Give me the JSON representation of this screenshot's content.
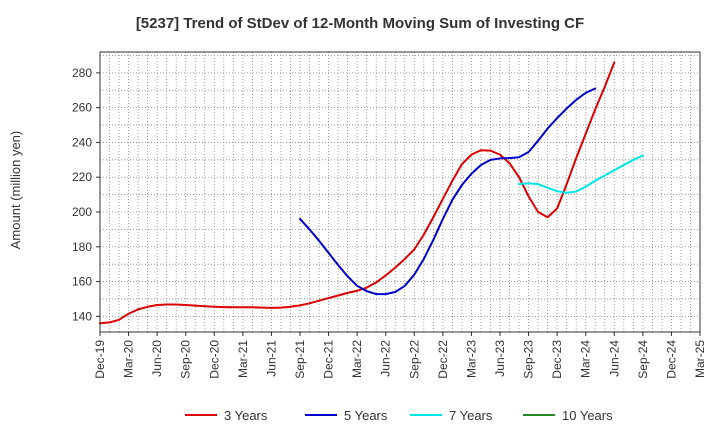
{
  "chart_data": {
    "type": "line",
    "title": "[5237]  Trend of StDev of 12-Month Moving Sum of Investing CF",
    "ylabel": "Amount (million yen)",
    "xlabel": "",
    "ylim": [
      131,
      292
    ],
    "yticks": [
      140,
      160,
      180,
      200,
      220,
      240,
      260,
      280
    ],
    "x_range": [
      "2019-12",
      "2025-03"
    ],
    "x_tick_labels": [
      "Dec-19",
      "Mar-20",
      "Jun-20",
      "Sep-20",
      "Dec-20",
      "Mar-21",
      "Jun-21",
      "Sep-21",
      "Dec-21",
      "Mar-22",
      "Jun-22",
      "Sep-22",
      "Dec-22",
      "Mar-23",
      "Jun-23",
      "Sep-23",
      "Dec-23",
      "Mar-24",
      "Jun-24",
      "Sep-24",
      "Dec-24",
      "Mar-25"
    ],
    "grid": true,
    "legend_position": "bottom",
    "series": [
      {
        "name": "3 Years",
        "color": "#dd0000",
        "points": [
          [
            "2019-12",
            136
          ],
          [
            "2020-01",
            136.5
          ],
          [
            "2020-02",
            138
          ],
          [
            "2020-03",
            141.5
          ],
          [
            "2020-04",
            144
          ],
          [
            "2020-05",
            145.5
          ],
          [
            "2020-06",
            146.5
          ],
          [
            "2020-07",
            146.8
          ],
          [
            "2020-08",
            146.8
          ],
          [
            "2020-09",
            146.5
          ],
          [
            "2020-10",
            146.2
          ],
          [
            "2020-11",
            145.8
          ],
          [
            "2020-12",
            145.5
          ],
          [
            "2021-01",
            145.3
          ],
          [
            "2021-02",
            145.2
          ],
          [
            "2021-03",
            145.2
          ],
          [
            "2021-04",
            145.2
          ],
          [
            "2021-05",
            145
          ],
          [
            "2021-06",
            144.9
          ],
          [
            "2021-07",
            145
          ],
          [
            "2021-08",
            145.5
          ],
          [
            "2021-09",
            146.3
          ],
          [
            "2021-10",
            147.5
          ],
          [
            "2021-11",
            149
          ],
          [
            "2021-12",
            150.5
          ],
          [
            "2022-01",
            152
          ],
          [
            "2022-02",
            153.5
          ],
          [
            "2022-03",
            154.7
          ],
          [
            "2022-04",
            156.5
          ],
          [
            "2022-05",
            159.5
          ],
          [
            "2022-06",
            163.5
          ],
          [
            "2022-07",
            168
          ],
          [
            "2022-08",
            173
          ],
          [
            "2022-09",
            178.5
          ],
          [
            "2022-10",
            187
          ],
          [
            "2022-11",
            197
          ],
          [
            "2022-12",
            207.5
          ],
          [
            "2023-01",
            218
          ],
          [
            "2023-02",
            227.5
          ],
          [
            "2023-03",
            233
          ],
          [
            "2023-04",
            235.5
          ],
          [
            "2023-05",
            235.3
          ],
          [
            "2023-06",
            233
          ],
          [
            "2023-07",
            228
          ],
          [
            "2023-08",
            220
          ],
          [
            "2023-09",
            209
          ],
          [
            "2023-10",
            200
          ],
          [
            "2023-11",
            197
          ],
          [
            "2023-12",
            202
          ],
          [
            "2024-01",
            216
          ],
          [
            "2024-02",
            231
          ],
          [
            "2024-03",
            245
          ],
          [
            "2024-04",
            259
          ],
          [
            "2024-05",
            272
          ],
          [
            "2024-06",
            286
          ]
        ]
      },
      {
        "name": "5 Years",
        "color": "#0000cc",
        "points": [
          [
            "2021-09",
            196
          ],
          [
            "2021-10",
            190
          ],
          [
            "2021-11",
            183.5
          ],
          [
            "2021-12",
            176.5
          ],
          [
            "2022-01",
            169.5
          ],
          [
            "2022-02",
            163
          ],
          [
            "2022-03",
            157.5
          ],
          [
            "2022-04",
            154.5
          ],
          [
            "2022-05",
            152.8
          ],
          [
            "2022-06",
            152.8
          ],
          [
            "2022-07",
            154
          ],
          [
            "2022-08",
            157.5
          ],
          [
            "2022-09",
            164
          ],
          [
            "2022-10",
            173
          ],
          [
            "2022-11",
            184
          ],
          [
            "2022-12",
            196
          ],
          [
            "2023-01",
            207
          ],
          [
            "2023-02",
            215.5
          ],
          [
            "2023-03",
            222
          ],
          [
            "2023-04",
            227
          ],
          [
            "2023-05",
            230
          ],
          [
            "2023-06",
            230.8
          ],
          [
            "2023-07",
            231
          ],
          [
            "2023-08",
            231.5
          ],
          [
            "2023-09",
            234.5
          ],
          [
            "2023-10",
            241
          ],
          [
            "2023-11",
            248
          ],
          [
            "2023-12",
            254
          ],
          [
            "2024-01",
            259.5
          ],
          [
            "2024-02",
            264.5
          ],
          [
            "2024-03",
            268.5
          ],
          [
            "2024-04",
            271
          ]
        ]
      },
      {
        "name": "7 Years",
        "color": "#00e5e5",
        "points": [
          [
            "2023-08",
            216
          ],
          [
            "2023-09",
            216.5
          ],
          [
            "2023-10",
            216
          ],
          [
            "2023-11",
            214
          ],
          [
            "2023-12",
            212
          ],
          [
            "2024-01",
            211
          ],
          [
            "2024-02",
            211.8
          ],
          [
            "2024-03",
            214.5
          ],
          [
            "2024-04",
            218
          ],
          [
            "2024-05",
            221
          ],
          [
            "2024-06",
            224
          ],
          [
            "2024-07",
            227
          ],
          [
            "2024-08",
            230
          ],
          [
            "2024-09",
            232.5
          ]
        ]
      },
      {
        "name": "10 Years",
        "color": "#228b22",
        "points": []
      }
    ]
  }
}
